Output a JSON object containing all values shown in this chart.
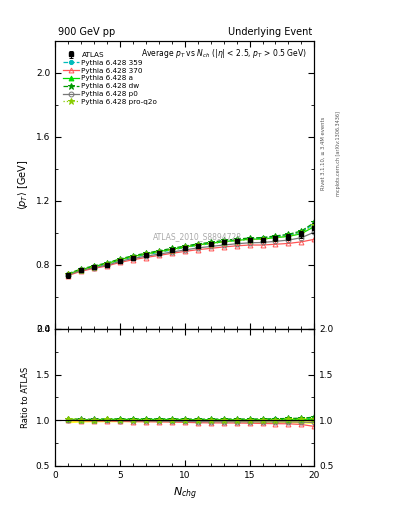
{
  "title_left": "900 GeV pp",
  "title_right": "Underlying Event",
  "subtitle": "Average $p_T$ vs $N_{ch}$ ($|\\eta|$ < 2.5, $p_T$ > 0.5 GeV)",
  "watermark": "ATLAS_2010_S8894728",
  "right_label1": "Rivet 3.1.10, ≥ 3.4M events",
  "right_label2": "mcplots.cern.ch [arXiv:1306.3436]",
  "ylabel_main": "$\\langle p_T \\rangle$ [GeV]",
  "ylabel_ratio": "Ratio to ATLAS",
  "xlabel": "$N_{chg}$",
  "xlim": [
    0,
    20
  ],
  "ylim_main": [
    0.4,
    2.2
  ],
  "ylim_ratio": [
    0.5,
    2.0
  ],
  "x_atlas": [
    1,
    2,
    3,
    4,
    5,
    6,
    7,
    8,
    9,
    10,
    11,
    12,
    13,
    14,
    15,
    16,
    17,
    18,
    19,
    20
  ],
  "y_atlas": [
    0.735,
    0.765,
    0.785,
    0.8,
    0.825,
    0.845,
    0.86,
    0.875,
    0.89,
    0.905,
    0.92,
    0.93,
    0.94,
    0.948,
    0.955,
    0.958,
    0.965,
    0.972,
    0.99,
    1.03
  ],
  "y_atlas_err": [
    0.015,
    0.01,
    0.008,
    0.008,
    0.008,
    0.008,
    0.007,
    0.007,
    0.007,
    0.007,
    0.008,
    0.008,
    0.009,
    0.01,
    0.011,
    0.013,
    0.015,
    0.018,
    0.022,
    0.03
  ],
  "series": [
    {
      "label": "Pythia 6.428 359",
      "color": "#00bbbb",
      "linestyle": "dashed",
      "marker": "o",
      "markersize": 3,
      "fillstyle": "full",
      "y": [
        0.74,
        0.768,
        0.788,
        0.805,
        0.83,
        0.848,
        0.863,
        0.878,
        0.893,
        0.908,
        0.923,
        0.933,
        0.945,
        0.953,
        0.962,
        0.965,
        0.975,
        0.985,
        1.005,
        1.058
      ]
    },
    {
      "label": "Pythia 6.428 370",
      "color": "#ff5555",
      "linestyle": "solid",
      "marker": "^",
      "markersize": 3.5,
      "fillstyle": "none",
      "y": [
        0.733,
        0.76,
        0.778,
        0.793,
        0.815,
        0.832,
        0.846,
        0.859,
        0.872,
        0.884,
        0.895,
        0.903,
        0.912,
        0.919,
        0.924,
        0.924,
        0.929,
        0.934,
        0.944,
        0.96
      ]
    },
    {
      "label": "Pythia 6.428 a",
      "color": "#00dd00",
      "linestyle": "solid",
      "marker": "^",
      "markersize": 3.5,
      "fillstyle": "full",
      "y": [
        0.742,
        0.77,
        0.79,
        0.808,
        0.833,
        0.852,
        0.868,
        0.883,
        0.897,
        0.912,
        0.925,
        0.935,
        0.945,
        0.953,
        0.96,
        0.962,
        0.97,
        0.978,
        0.995,
        1.04
      ]
    },
    {
      "label": "Pythia 6.428 dw",
      "color": "#009900",
      "linestyle": "dashed",
      "marker": "*",
      "markersize": 4.5,
      "fillstyle": "full",
      "y": [
        0.745,
        0.774,
        0.794,
        0.812,
        0.837,
        0.857,
        0.873,
        0.888,
        0.903,
        0.918,
        0.931,
        0.941,
        0.953,
        0.961,
        0.968,
        0.971,
        0.981,
        0.991,
        1.012,
        1.065
      ]
    },
    {
      "label": "Pythia 6.428 p0",
      "color": "#777777",
      "linestyle": "solid",
      "marker": "o",
      "markersize": 3.5,
      "fillstyle": "none",
      "y": [
        0.737,
        0.765,
        0.783,
        0.798,
        0.822,
        0.84,
        0.854,
        0.867,
        0.88,
        0.893,
        0.906,
        0.915,
        0.924,
        0.932,
        0.938,
        0.94,
        0.947,
        0.955,
        0.97,
        1.005
      ]
    },
    {
      "label": "Pythia 6.428 pro-q2o",
      "color": "#88cc00",
      "linestyle": "dotted",
      "marker": "*",
      "markersize": 4.5,
      "fillstyle": "full",
      "y": [
        0.741,
        0.769,
        0.789,
        0.807,
        0.831,
        0.85,
        0.865,
        0.88,
        0.894,
        0.909,
        0.922,
        0.932,
        0.943,
        0.951,
        0.958,
        0.96,
        0.97,
        0.98,
        1.0,
        1.048
      ]
    }
  ],
  "background_color": "#ffffff"
}
